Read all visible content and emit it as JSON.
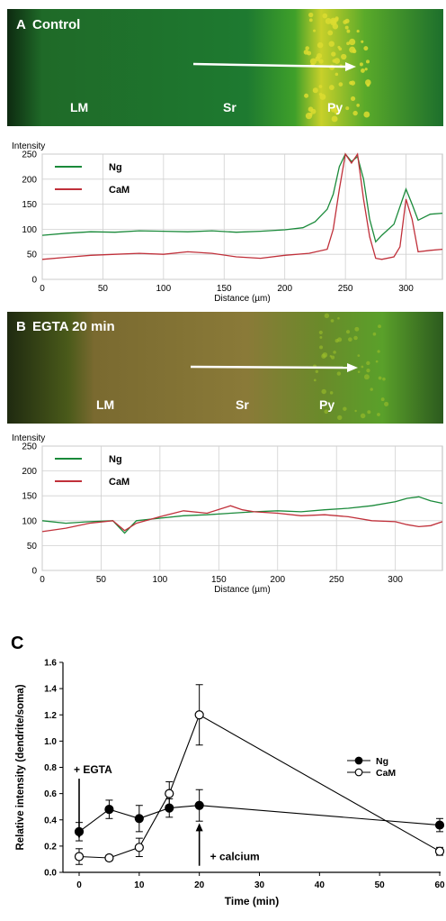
{
  "panels": [
    {
      "letter": "A",
      "title": "Control",
      "regions": [
        "LM",
        "Sr",
        "Py"
      ],
      "colors": {
        "bg_left": "#113a16",
        "bg_right": "#1e7d32",
        "band": "#55bb22",
        "cells": "#dcdc30"
      }
    },
    {
      "letter": "B",
      "title": "EGTA 20 min",
      "regions": [
        "LM",
        "Sr",
        "Py"
      ],
      "colors": {
        "bg_left": "#2e3a13",
        "bg_mid": "#6a6a22",
        "bg_right": "#3f8a2a",
        "cells": "#9cbf2a"
      }
    }
  ],
  "chart_data": [
    {
      "type": "line",
      "title": "",
      "ylabel": "Intensity",
      "xlabel": "Distance (µm)",
      "xlim": [
        0,
        330
      ],
      "ylim": [
        0,
        250
      ],
      "xticks": [
        0,
        50,
        100,
        150,
        200,
        250,
        300
      ],
      "yticks": [
        0,
        50,
        100,
        150,
        200,
        250
      ],
      "grid": true,
      "legend": "top-left",
      "series": [
        {
          "name": "Ng",
          "color": "#1a8a3a",
          "x": [
            0,
            20,
            40,
            60,
            80,
            100,
            120,
            140,
            160,
            180,
            200,
            215,
            225,
            235,
            240,
            245,
            250,
            255,
            260,
            265,
            270,
            275,
            280,
            290,
            300,
            305,
            310,
            320,
            330
          ],
          "y": [
            88,
            92,
            95,
            94,
            97,
            96,
            95,
            97,
            94,
            96,
            99,
            103,
            115,
            140,
            170,
            225,
            250,
            235,
            245,
            200,
            120,
            75,
            88,
            110,
            180,
            150,
            118,
            130,
            132
          ]
        },
        {
          "name": "CaM",
          "color": "#c0303a",
          "x": [
            0,
            20,
            40,
            60,
            80,
            100,
            120,
            140,
            160,
            180,
            200,
            220,
            235,
            240,
            245,
            250,
            255,
            260,
            265,
            270,
            275,
            280,
            290,
            295,
            300,
            305,
            310,
            320,
            330
          ],
          "y": [
            40,
            44,
            48,
            50,
            52,
            50,
            55,
            52,
            45,
            42,
            48,
            52,
            60,
            100,
            180,
            250,
            232,
            250,
            160,
            85,
            42,
            40,
            45,
            65,
            160,
            120,
            55,
            58,
            60
          ]
        }
      ]
    },
    {
      "type": "line",
      "title": "",
      "ylabel": "Intensity",
      "xlabel": "Distance (µm)",
      "xlim": [
        0,
        340
      ],
      "ylim": [
        0,
        250
      ],
      "xticks": [
        0,
        50,
        100,
        150,
        200,
        250,
        300
      ],
      "yticks": [
        0,
        50,
        100,
        150,
        200,
        250
      ],
      "grid": true,
      "legend": "top-left",
      "series": [
        {
          "name": "Ng",
          "color": "#1a8a3a",
          "x": [
            0,
            20,
            40,
            60,
            70,
            80,
            100,
            120,
            140,
            160,
            180,
            200,
            220,
            240,
            260,
            280,
            300,
            310,
            320,
            330,
            340
          ],
          "y": [
            100,
            95,
            98,
            100,
            75,
            100,
            105,
            110,
            112,
            115,
            118,
            120,
            118,
            122,
            125,
            130,
            138,
            145,
            148,
            140,
            135
          ]
        },
        {
          "name": "CaM",
          "color": "#c0303a",
          "x": [
            0,
            20,
            40,
            60,
            70,
            80,
            100,
            120,
            140,
            160,
            170,
            180,
            200,
            220,
            240,
            260,
            280,
            300,
            310,
            320,
            330,
            340
          ],
          "y": [
            78,
            85,
            95,
            100,
            80,
            95,
            108,
            120,
            115,
            130,
            122,
            118,
            115,
            110,
            112,
            108,
            100,
            98,
            92,
            88,
            90,
            98
          ]
        }
      ]
    },
    {
      "type": "line",
      "letter": "C",
      "title": "",
      "ylabel": "Relative intensity (dendrite/soma)",
      "xlabel": "Time (min)",
      "xlim": [
        0,
        60
      ],
      "ylim": [
        0,
        1.6
      ],
      "xticks": [
        0,
        10,
        20,
        30,
        40,
        50,
        60
      ],
      "yticks": [
        0.0,
        0.2,
        0.4,
        0.6,
        0.8,
        1.0,
        1.2,
        1.4,
        1.6
      ],
      "grid": false,
      "legend": "right",
      "annotations": [
        {
          "text": "+ EGTA",
          "x": 0,
          "y": 0.7
        },
        {
          "text": "+ calcium",
          "x": 20,
          "y": 0.12
        }
      ],
      "series": [
        {
          "name": "Ng",
          "marker": "filled-circle",
          "x": [
            0,
            5,
            10,
            15,
            20,
            60
          ],
          "y": [
            0.31,
            0.48,
            0.41,
            0.49,
            0.51,
            0.36
          ],
          "err": [
            0.07,
            0.07,
            0.1,
            0.07,
            0.12,
            0.05
          ]
        },
        {
          "name": "CaM",
          "marker": "open-circle",
          "x": [
            0,
            5,
            10,
            15,
            20,
            60
          ],
          "y": [
            0.12,
            0.11,
            0.19,
            0.6,
            1.2,
            0.16
          ],
          "err": [
            0.06,
            0.02,
            0.07,
            0.09,
            0.23,
            0.03
          ]
        }
      ]
    }
  ]
}
